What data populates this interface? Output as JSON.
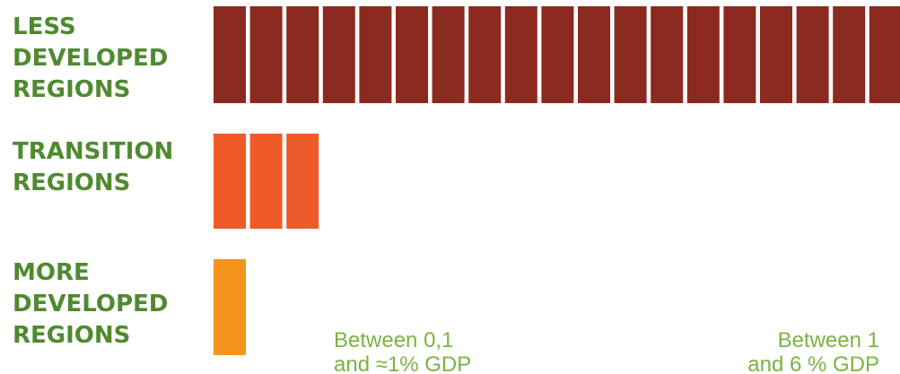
{
  "chart_data": {
    "type": "bar",
    "unit_description": "",
    "categories": [
      [
        "LESS",
        "DEVELOPED",
        "REGIONS"
      ],
      [
        "TRANSITION",
        "REGIONS"
      ],
      [
        "MORE",
        "DEVELOPED",
        "REGIONS"
      ]
    ],
    "values": [
      19,
      3,
      1
    ],
    "colors": [
      "#8b2a1e",
      "#ef5a2a",
      "#f4941d"
    ],
    "label_color": "#4f8a2f",
    "annotation_color": "#7cb342",
    "annotations": [
      {
        "lines": [
          "Between 0,1",
          "and ≈1% GDP"
        ],
        "align": "left"
      },
      {
        "lines": [
          "Between 1",
          "and 6 % GDP"
        ],
        "align": "right"
      }
    ]
  }
}
